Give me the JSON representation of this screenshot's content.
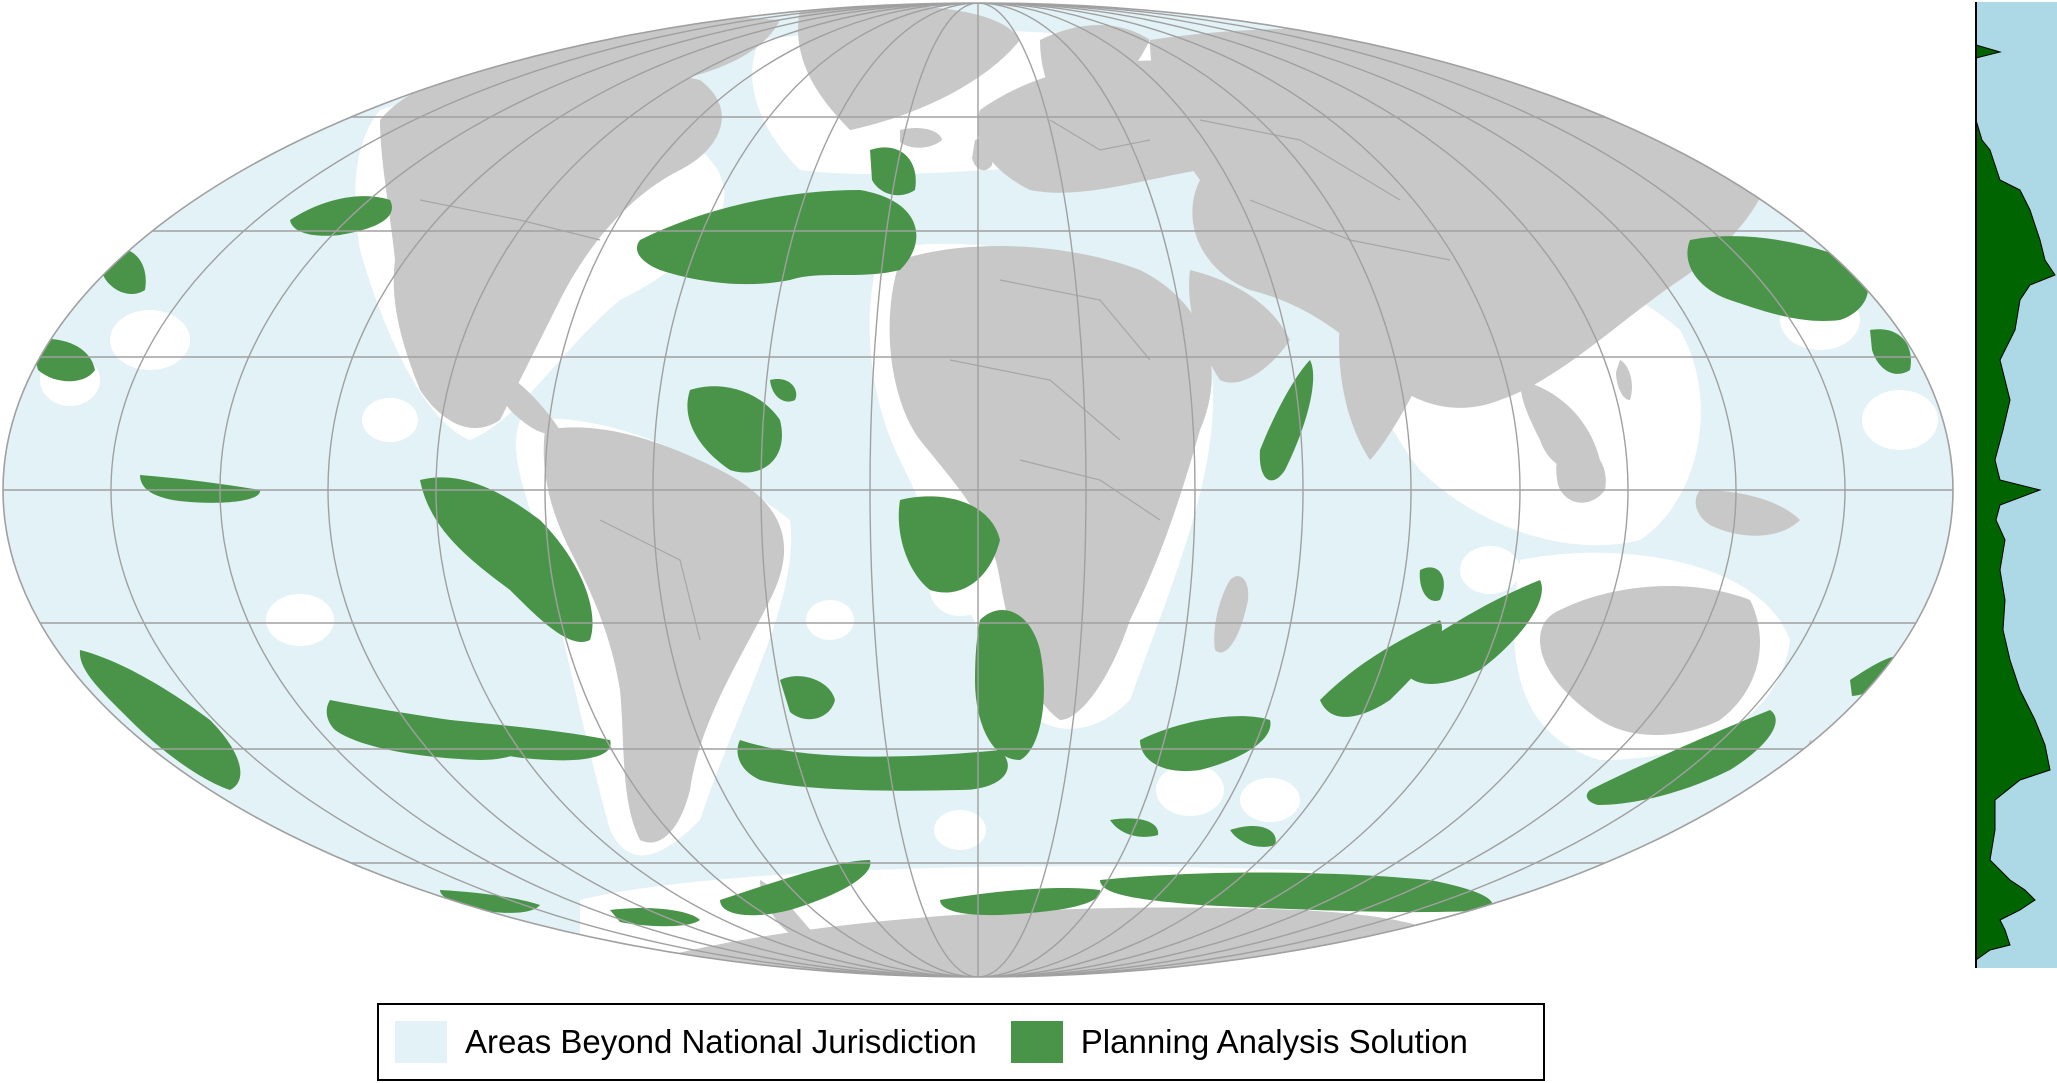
{
  "map": {
    "projection": "Mollweide",
    "colors": {
      "ocean_beyond_jurisdiction": "#e3f2f7",
      "national_waters": "#ffffff",
      "land": "#c8c8c8",
      "land_borders": "#a6a6a6",
      "graticule": "#a0a0a0",
      "solution": "#4a944a"
    }
  },
  "side_profile": {
    "colors": {
      "background": "#add8e6",
      "fill": "#006400",
      "axis": "#000000"
    }
  },
  "legend": {
    "entries": [
      {
        "label": "Areas Beyond National Jurisdiction",
        "color": "#e3f2f7"
      },
      {
        "label": "Planning Analysis Solution",
        "color": "#4a944a"
      }
    ]
  }
}
